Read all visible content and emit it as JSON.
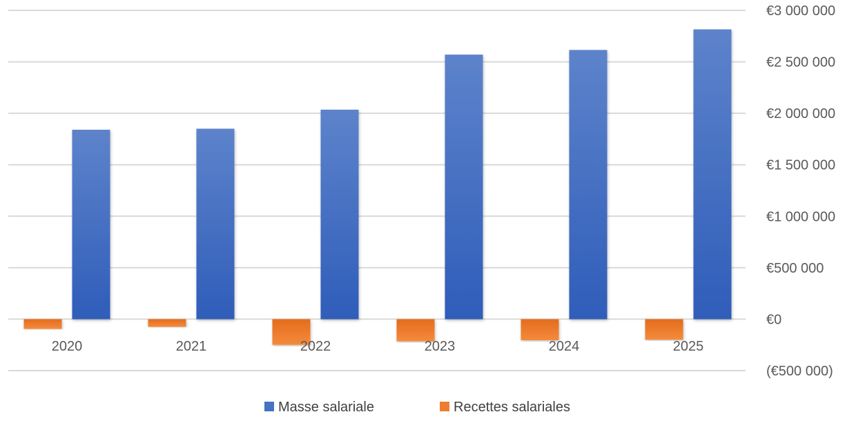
{
  "chart_data": {
    "type": "bar",
    "title": "",
    "xlabel": "",
    "ylabel": "",
    "categories": [
      "2020",
      "2021",
      "2022",
      "2023",
      "2024",
      "2025"
    ],
    "series": [
      {
        "name": "Recettes salariales",
        "color": "#ED7D31",
        "values": [
          -95000,
          -75000,
          -250000,
          -215000,
          -205000,
          -200000
        ]
      },
      {
        "name": "Masse salariale",
        "color": "#4472C4",
        "values": [
          1840000,
          1850000,
          2035000,
          2570000,
          2615000,
          2815000
        ]
      }
    ],
    "ylim": [
      -500000,
      3000000
    ],
    "yticks": [
      {
        "value": 3000000,
        "label": "€3 000 000"
      },
      {
        "value": 2500000,
        "label": "€2 500 000"
      },
      {
        "value": 2000000,
        "label": "€2 000 000"
      },
      {
        "value": 1500000,
        "label": "€1 500 000"
      },
      {
        "value": 1000000,
        "label": "€1 000 000"
      },
      {
        "value": 500000,
        "label": "€500 000"
      },
      {
        "value": 0,
        "label": "€0"
      },
      {
        "value": -500000,
        "label": "(€500 000)"
      }
    ],
    "y_axis_side": "right",
    "grid": true,
    "legend": {
      "position": "bottom",
      "items": [
        {
          "label": "Masse salariale",
          "color": "#4472C4"
        },
        {
          "label": "Recettes salariales",
          "color": "#ED7D31"
        }
      ]
    }
  }
}
